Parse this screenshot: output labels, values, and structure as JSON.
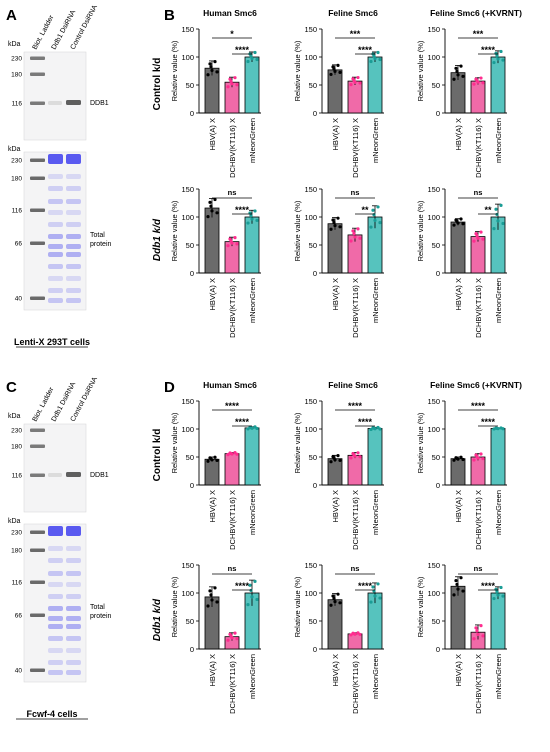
{
  "panel_labels": [
    "A",
    "B",
    "C",
    "D"
  ],
  "blots": [
    {
      "lane_labels": [
        "Biot. Ladder",
        "Ddb1 DsiRNA",
        "Control DsiRNA"
      ],
      "top": {
        "kda_label": "kDa",
        "markers": [
          "230",
          "180",
          "116"
        ],
        "annotation": "DDB1"
      },
      "bottom": {
        "kda_label": "kDa",
        "markers": [
          "230",
          "180",
          "116",
          "66",
          "40"
        ],
        "annotation_lines": [
          "Total",
          "protein"
        ]
      },
      "caption": "Lenti-X 293T cells"
    },
    {
      "lane_labels": [
        "Biot. Ladder",
        "Ddb1 DsiRNA",
        "Control DsiRNA"
      ],
      "top": {
        "kda_label": "kDa",
        "markers": [
          "230",
          "180",
          "116"
        ],
        "annotation": "DDB1"
      },
      "bottom": {
        "kda_label": "kDa",
        "markers": [
          "230",
          "180",
          "116",
          "66",
          "40"
        ],
        "annotation_lines": [
          "Total",
          "protein"
        ]
      },
      "caption": "Fcwf-4 cells"
    }
  ],
  "row_labels": [
    "Control k/d",
    "Ddb1 k/d",
    "Control k/d",
    "Ddb1 k/d"
  ],
  "colors": {
    "grey": "#6b6b6b",
    "pink": "#f06aa8",
    "teal": "#56c3be",
    "blot_blue": "#5a5af0"
  },
  "chart_data": [
    {
      "type": "bar",
      "panel": "B",
      "title": "Human Smc6",
      "ylabel": "Relative value (%)",
      "ylim": [
        0,
        150
      ],
      "yticks": [
        0,
        50,
        100,
        150
      ],
      "categories": [
        "HBV(A) X",
        "DCHBV(KT116) X",
        "mNeonGreen"
      ],
      "values": [
        80,
        55,
        100
      ],
      "errors": [
        13,
        9,
        9
      ],
      "significance": [
        {
          "from": 0,
          "to": 2,
          "label": "*"
        },
        {
          "from": 1,
          "to": 2,
          "label": "****"
        }
      ]
    },
    {
      "type": "bar",
      "panel": "B",
      "title": "Feline Smc6",
      "ylabel": "Relative value (%)",
      "ylim": [
        0,
        150
      ],
      "yticks": [
        0,
        50,
        100,
        150
      ],
      "categories": [
        "HBV(A) X",
        "DCHBV(KT116) X",
        "mNeonGreen"
      ],
      "values": [
        77,
        57,
        100
      ],
      "errors": [
        9,
        7,
        9
      ],
      "significance": [
        {
          "from": 0,
          "to": 2,
          "label": "***"
        },
        {
          "from": 1,
          "to": 2,
          "label": "****"
        }
      ]
    },
    {
      "type": "bar",
      "panel": "B",
      "title": "Feline Smc6 (+KVRNT)",
      "ylabel": "Relative value (%)",
      "ylim": [
        0,
        150
      ],
      "yticks": [
        0,
        50,
        100,
        150
      ],
      "categories": [
        "HBV(A) X",
        "DCHBV(KT116) X",
        "mNeonGreen"
      ],
      "values": [
        72,
        57,
        100
      ],
      "errors": [
        13,
        6,
        11
      ],
      "significance": [
        {
          "from": 0,
          "to": 2,
          "label": "***"
        },
        {
          "from": 1,
          "to": 2,
          "label": "****"
        }
      ]
    },
    {
      "type": "bar",
      "panel": "B",
      "title": "",
      "ylabel": "Relative value (%)",
      "ylim": [
        0,
        150
      ],
      "yticks": [
        0,
        50,
        100,
        150
      ],
      "categories": [
        "HBV(A) X",
        "DCHBV(KT116) X",
        "mNeonGreen"
      ],
      "values": [
        116,
        56,
        100
      ],
      "errors": [
        17,
        8,
        12
      ],
      "significance": [
        {
          "from": 0,
          "to": 2,
          "label": "ns"
        },
        {
          "from": 1,
          "to": 2,
          "label": "****"
        }
      ]
    },
    {
      "type": "bar",
      "panel": "B",
      "title": "",
      "ylabel": "Relative value (%)",
      "ylim": [
        0,
        150
      ],
      "yticks": [
        0,
        50,
        100,
        150
      ],
      "categories": [
        "HBV(A) X",
        "DCHBV(KT116) X",
        "mNeonGreen"
      ],
      "values": [
        88,
        68,
        100
      ],
      "errors": [
        11,
        12,
        20
      ],
      "significance": [
        {
          "from": 0,
          "to": 2,
          "label": "ns"
        },
        {
          "from": 1,
          "to": 2,
          "label": "**"
        }
      ]
    },
    {
      "type": "bar",
      "panel": "B",
      "title": "",
      "ylabel": "Relative value (%)",
      "ylim": [
        0,
        150
      ],
      "yticks": [
        0,
        50,
        100,
        150
      ],
      "categories": [
        "HBV(A) X",
        "DCHBV(KT116) X",
        "mNeonGreen"
      ],
      "values": [
        91,
        65,
        100
      ],
      "errors": [
        6,
        9,
        23
      ],
      "significance": [
        {
          "from": 0,
          "to": 2,
          "label": "ns"
        },
        {
          "from": 1,
          "to": 2,
          "label": "**"
        }
      ]
    },
    {
      "type": "bar",
      "panel": "D",
      "title": "Human Smc6",
      "ylabel": "Relative value (%)",
      "ylim": [
        0,
        150
      ],
      "yticks": [
        0,
        50,
        100,
        150
      ],
      "categories": [
        "HBV(A) X",
        "DCHBV(KT116) X",
        "mNeonGreen"
      ],
      "values": [
        46,
        56,
        102
      ],
      "errors": [
        4,
        2,
        2
      ],
      "significance": [
        {
          "from": 0,
          "to": 2,
          "label": "****"
        },
        {
          "from": 1,
          "to": 2,
          "label": "****"
        }
      ]
    },
    {
      "type": "bar",
      "panel": "D",
      "title": "Feline Smc6",
      "ylabel": "Relative value (%)",
      "ylim": [
        0,
        150
      ],
      "yticks": [
        0,
        50,
        100,
        150
      ],
      "categories": [
        "HBV(A) X",
        "DCHBV(KT116) X",
        "mNeonGreen"
      ],
      "values": [
        47,
        53,
        101
      ],
      "errors": [
        6,
        5,
        2
      ],
      "significance": [
        {
          "from": 0,
          "to": 2,
          "label": "****"
        },
        {
          "from": 1,
          "to": 2,
          "label": "****"
        }
      ]
    },
    {
      "type": "bar",
      "panel": "D",
      "title": "Feline Smc6 (+KVRNT)",
      "ylabel": "Relative value (%)",
      "ylim": [
        0,
        150
      ],
      "yticks": [
        0,
        50,
        100,
        150
      ],
      "categories": [
        "HBV(A) X",
        "DCHBV(KT116) X",
        "mNeonGreen"
      ],
      "values": [
        47,
        50,
        101
      ],
      "errors": [
        3,
        6,
        1
      ],
      "significance": [
        {
          "from": 0,
          "to": 2,
          "label": "****"
        },
        {
          "from": 1,
          "to": 2,
          "label": "****"
        }
      ]
    },
    {
      "type": "bar",
      "panel": "D",
      "title": "",
      "ylabel": "Relative value (%)",
      "ylim": [
        0,
        150
      ],
      "yticks": [
        0,
        50,
        100,
        150
      ],
      "categories": [
        "HBV(A) X",
        "DCHBV(KT116) X",
        "mNeonGreen"
      ],
      "values": [
        93,
        22,
        100
      ],
      "errors": [
        18,
        7,
        23
      ],
      "significance": [
        {
          "from": 0,
          "to": 2,
          "label": "ns"
        },
        {
          "from": 1,
          "to": 2,
          "label": "****"
        }
      ]
    },
    {
      "type": "bar",
      "panel": "D",
      "title": "",
      "ylabel": "Relative value (%)",
      "ylim": [
        0,
        150
      ],
      "yticks": [
        0,
        50,
        100,
        150
      ],
      "categories": [
        "HBV(A) X",
        "DCHBV(KT116) X",
        "mNeonGreen"
      ],
      "values": [
        88,
        27,
        100
      ],
      "errors": [
        11,
        2,
        18
      ],
      "significance": [
        {
          "from": 0,
          "to": 2,
          "label": "ns"
        },
        {
          "from": 1,
          "to": 2,
          "label": "****"
        }
      ]
    },
    {
      "type": "bar",
      "panel": "D",
      "title": "",
      "ylabel": "Relative value (%)",
      "ylim": [
        0,
        150
      ],
      "yticks": [
        0,
        50,
        100,
        150
      ],
      "categories": [
        "HBV(A) X",
        "DCHBV(KT116) X",
        "mNeonGreen"
      ],
      "values": [
        112,
        30,
        100
      ],
      "errors": [
        17,
        13,
        11
      ],
      "significance": [
        {
          "from": 0,
          "to": 2,
          "label": "ns"
        },
        {
          "from": 1,
          "to": 2,
          "label": "****"
        }
      ]
    }
  ]
}
